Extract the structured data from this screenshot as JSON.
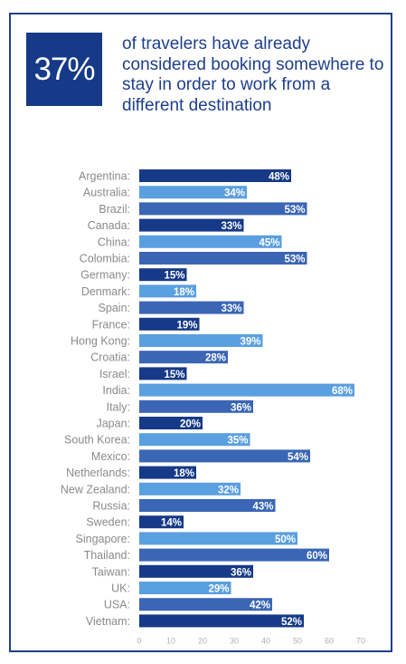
{
  "stat": {
    "value": "37%"
  },
  "headline": "of travelers have already considered booking somewhere to stay in order to work from a different destination",
  "colors": {
    "navy": "#163a87",
    "mid": "#3b66b5",
    "light": "#5a9fe0",
    "border": "#1f3f8a",
    "label": "#8a8a8a",
    "tick": "#b0b0b0"
  },
  "chart_data": {
    "type": "bar",
    "orientation": "horizontal",
    "categories": [
      "Argentina:",
      "Australia:",
      "Brazil:",
      "Canada:",
      "China:",
      "Colombia:",
      "Germany:",
      "Denmark:",
      "Spain:",
      "France:",
      "Hong Kong:",
      "Croatia:",
      "Israel:",
      "India:",
      "Italy:",
      "Japan:",
      "South Korea:",
      "Mexico:",
      "Netherlands:",
      "New Zealand:",
      "Russia:",
      "Sweden:",
      "Singapore:",
      "Thailand:",
      "Taiwan:",
      "UK:",
      "USA:",
      "Vietnam:"
    ],
    "values": [
      48,
      34,
      53,
      33,
      45,
      53,
      15,
      18,
      33,
      19,
      39,
      28,
      15,
      68,
      36,
      20,
      35,
      54,
      18,
      32,
      43,
      14,
      50,
      60,
      36,
      29,
      42,
      52
    ],
    "value_labels": [
      "48%",
      "34%",
      "53%",
      "33%",
      "45%",
      "53%",
      "15%",
      "18%",
      "33%",
      "19%",
      "39%",
      "28%",
      "15%",
      "68%",
      "36%",
      "20%",
      "35%",
      "54%",
      "18%",
      "32%",
      "43%",
      "14%",
      "50%",
      "60%",
      "36%",
      "29%",
      "42%",
      "52%"
    ],
    "bar_colors": [
      "navy",
      "light",
      "mid",
      "navy",
      "light",
      "mid",
      "navy",
      "light",
      "mid",
      "navy",
      "light",
      "mid",
      "navy",
      "light",
      "mid",
      "navy",
      "light",
      "mid",
      "navy",
      "light",
      "mid",
      "navy",
      "light",
      "mid",
      "navy",
      "light",
      "mid",
      "navy"
    ],
    "xticks": [
      "0",
      "10",
      "20",
      "30",
      "40",
      "50",
      "60",
      "70"
    ],
    "xlim": [
      0,
      70
    ],
    "grid": false,
    "legend": "none"
  }
}
